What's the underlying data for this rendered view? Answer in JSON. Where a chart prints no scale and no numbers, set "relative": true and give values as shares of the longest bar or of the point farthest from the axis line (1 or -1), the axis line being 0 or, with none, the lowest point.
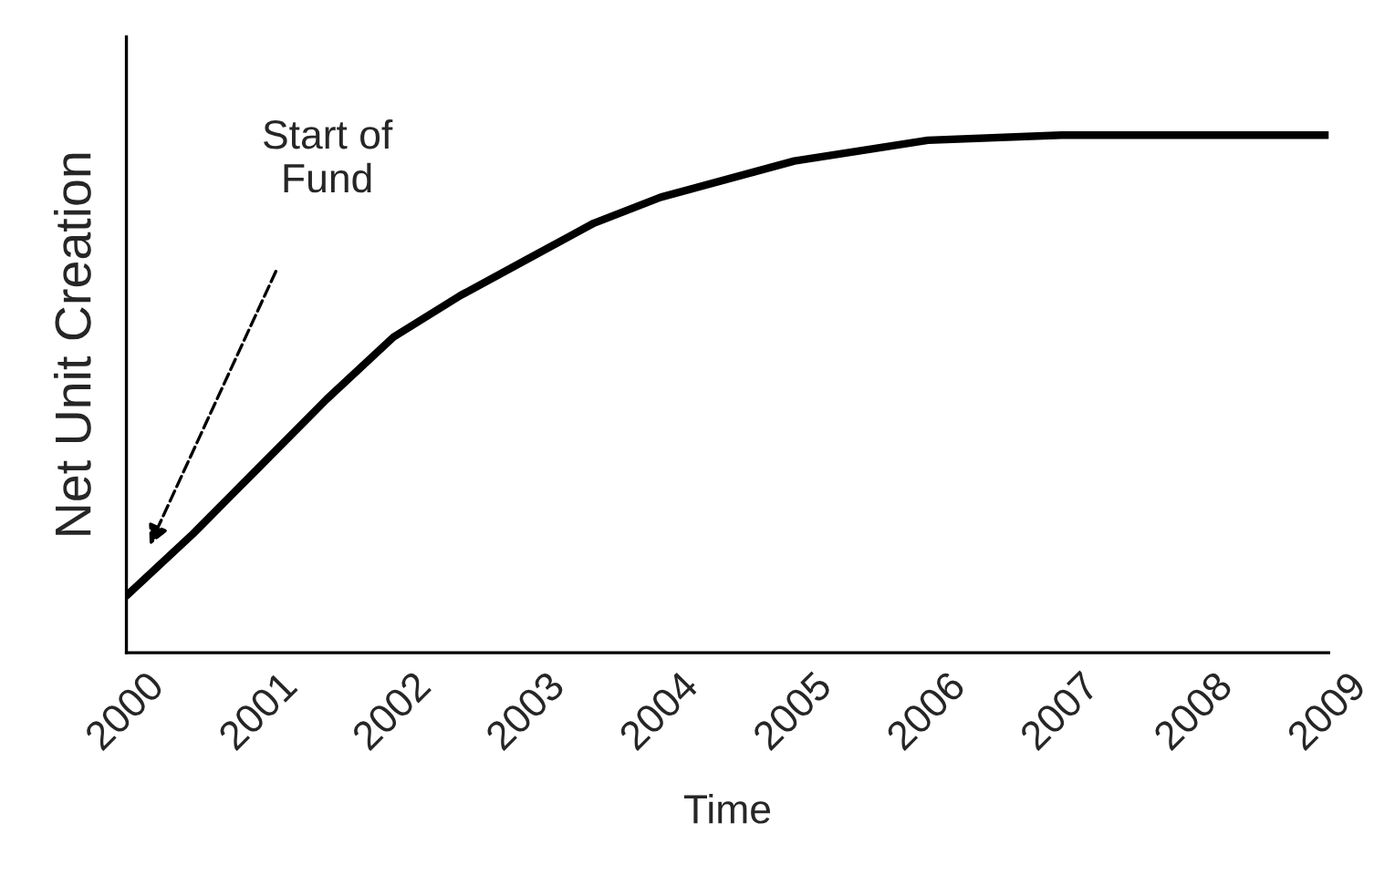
{
  "chart_data": {
    "type": "line",
    "xlabel": "Time",
    "ylabel": "Net Unit Creation",
    "relative": true,
    "x": [
      2000,
      2000.5,
      2001,
      2001.5,
      2002,
      2002.5,
      2003,
      2003.5,
      2004,
      2005,
      2006,
      2007,
      2008,
      2009
    ],
    "series": [
      {
        "color": "#000000",
        "values": [
          0.11,
          0.23,
          0.36,
          0.49,
          0.61,
          0.69,
          0.76,
          0.83,
          0.88,
          0.95,
          0.99,
          1,
          1,
          1
        ]
      }
    ],
    "xlim": [
      2000,
      2009
    ],
    "xticks": [
      2000,
      2001,
      2002,
      2003,
      2004,
      2005,
      2006,
      2007,
      2008,
      2009
    ],
    "annotations": [
      "Start of\nFund"
    ],
    "grid": false,
    "legend": false,
    "marker": "none",
    "line_style": "solid"
  }
}
